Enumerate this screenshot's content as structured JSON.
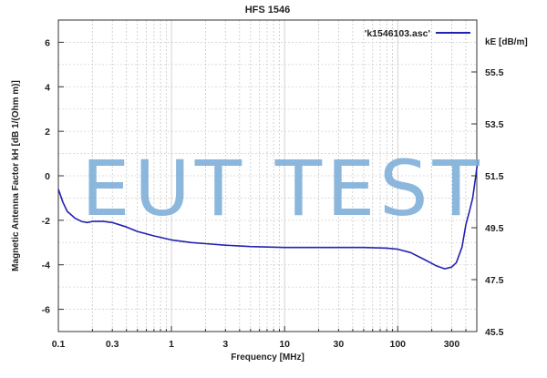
{
  "chart_data": {
    "type": "line",
    "title": "HFS 1546",
    "xlabel": "Frequency [MHz]",
    "ylabel": "Magnetic Antenna Factor kH [dB 1/(Ohm m)]",
    "y2label": "kE [dB/m]",
    "xscale": "log",
    "xlim": [
      0.1,
      500
    ],
    "ylim": [
      -7,
      7
    ],
    "y2lim": [
      45.5,
      57.5
    ],
    "xticks": [
      {
        "value": 0.1,
        "label": "0.1"
      },
      {
        "value": 0.3,
        "label": "0.3"
      },
      {
        "value": 1,
        "label": "1"
      },
      {
        "value": 3,
        "label": "3"
      },
      {
        "value": 10,
        "label": "10"
      },
      {
        "value": 30,
        "label": "30"
      },
      {
        "value": 100,
        "label": "100"
      },
      {
        "value": 300,
        "label": "300"
      }
    ],
    "yticks": [
      -6,
      -4,
      -2,
      0,
      2,
      4,
      6
    ],
    "y2ticks": [
      {
        "value": 45.5,
        "label": "45.5"
      },
      {
        "value": 47.5,
        "label": "47.5"
      },
      {
        "value": 49.5,
        "label": "49.5"
      },
      {
        "value": 51.5,
        "label": "51.5"
      },
      {
        "value": 53.5,
        "label": "53.5"
      },
      {
        "value": 55.5,
        "label": "55.5"
      }
    ],
    "grid": true,
    "legend_position": "top-right",
    "series": [
      {
        "name": "'k1546103.asc'",
        "color": "#2222b0",
        "points": [
          [
            0.1,
            -0.6
          ],
          [
            0.11,
            -1.2
          ],
          [
            0.12,
            -1.6
          ],
          [
            0.14,
            -1.9
          ],
          [
            0.16,
            -2.05
          ],
          [
            0.18,
            -2.1
          ],
          [
            0.2,
            -2.05
          ],
          [
            0.25,
            -2.05
          ],
          [
            0.3,
            -2.1
          ],
          [
            0.4,
            -2.3
          ],
          [
            0.5,
            -2.5
          ],
          [
            0.7,
            -2.7
          ],
          [
            1,
            -2.88
          ],
          [
            1.5,
            -3.0
          ],
          [
            2,
            -3.05
          ],
          [
            3,
            -3.12
          ],
          [
            5,
            -3.18
          ],
          [
            7,
            -3.2
          ],
          [
            10,
            -3.22
          ],
          [
            20,
            -3.22
          ],
          [
            50,
            -3.22
          ],
          [
            80,
            -3.25
          ],
          [
            100,
            -3.3
          ],
          [
            130,
            -3.45
          ],
          [
            170,
            -3.75
          ],
          [
            220,
            -4.05
          ],
          [
            260,
            -4.18
          ],
          [
            300,
            -4.1
          ],
          [
            330,
            -3.9
          ],
          [
            370,
            -3.2
          ],
          [
            400,
            -2.2
          ],
          [
            430,
            -1.6
          ],
          [
            460,
            -1.0
          ],
          [
            490,
            0.0
          ],
          [
            510,
            0.7
          ]
        ]
      }
    ]
  },
  "watermark": "EUT TEST"
}
